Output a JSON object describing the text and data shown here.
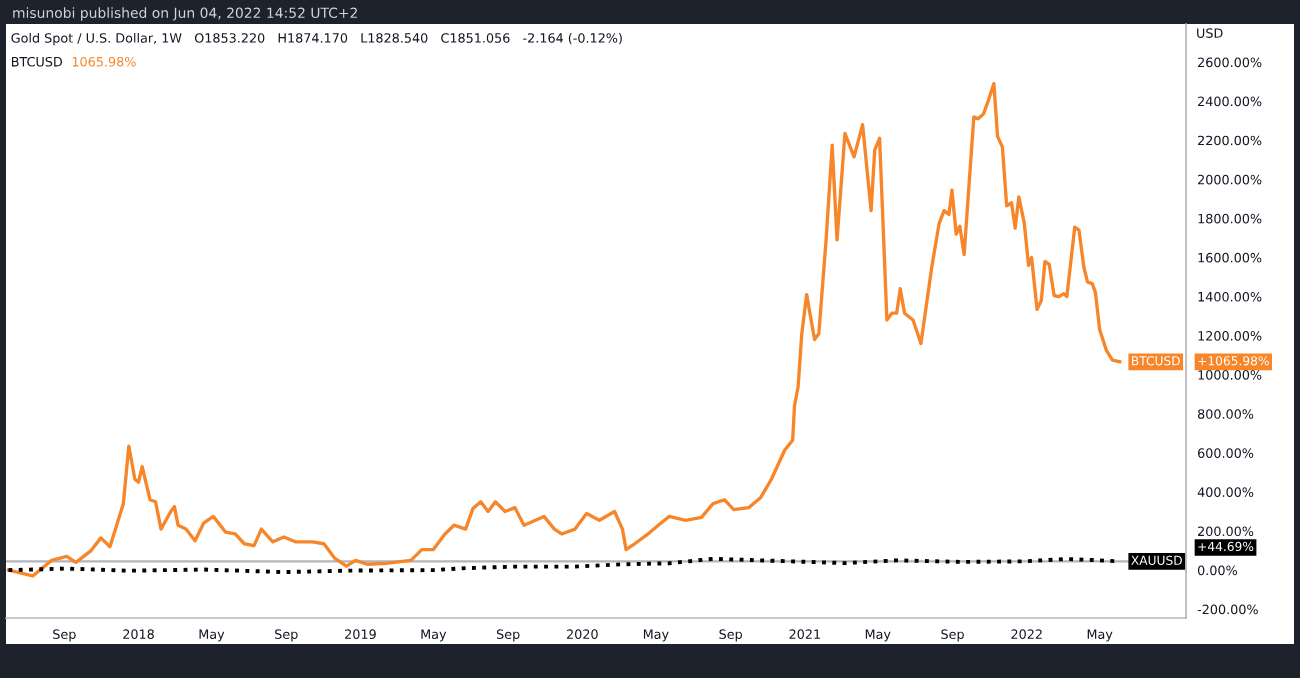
{
  "chart_data": {
    "type": "line",
    "title": "misunobi published on Jun 04, 2022 14:52 UTC+2",
    "subtitle": "Gold Spot / U.S. Dollar, 1W   O1853.220   H1874.170   L1828.540   C1851.056   -2.164 (-0.12%)",
    "ylabel": "USD",
    "legend_title": "BTCUSD",
    "annotations": [
      "1065.98%",
      "+1065.98%",
      "+44.69%"
    ],
    "ylim": [
      -245,
      2795
    ],
    "yticks": [
      {
        "value": -200,
        "label": "-200.00%"
      },
      {
        "value": 0,
        "label": "0.00%"
      },
      {
        "value": 200,
        "label": "200.00%"
      },
      {
        "value": 400,
        "label": "400.00%"
      },
      {
        "value": 600,
        "label": "600.00%"
      },
      {
        "value": 800,
        "label": "800.00%"
      },
      {
        "value": 1000,
        "label": "1000.00%"
      },
      {
        "value": 1200,
        "label": "1200.00%"
      },
      {
        "value": 1400,
        "label": "1400.00%"
      },
      {
        "value": 1600,
        "label": "1600.00%"
      },
      {
        "value": 1800,
        "label": "1800.00%"
      },
      {
        "value": 2000,
        "label": "2000.00%"
      },
      {
        "value": 2200,
        "label": "2200.00%"
      },
      {
        "value": 2400,
        "label": "2400.00%"
      },
      {
        "value": 2600,
        "label": "2600.00%"
      }
    ],
    "xlim": [
      "2017-05-28",
      "2022-09-20"
    ],
    "xticks": [
      {
        "value": "2017-09-01",
        "label": "Sep"
      },
      {
        "value": "2018-01-01",
        "label": "2018"
      },
      {
        "value": "2018-05-01",
        "label": "May"
      },
      {
        "value": "2018-09-01",
        "label": "Sep"
      },
      {
        "value": "2019-01-01",
        "label": "2019"
      },
      {
        "value": "2019-05-01",
        "label": "May"
      },
      {
        "value": "2019-09-01",
        "label": "Sep"
      },
      {
        "value": "2020-01-01",
        "label": "2020"
      },
      {
        "value": "2020-05-01",
        "label": "May"
      },
      {
        "value": "2020-09-01",
        "label": "Sep"
      },
      {
        "value": "2021-01-01",
        "label": "2021"
      },
      {
        "value": "2021-05-01",
        "label": "May"
      },
      {
        "value": "2021-09-01",
        "label": "Sep"
      },
      {
        "value": "2022-01-01",
        "label": "2022"
      },
      {
        "value": "2022-05-01",
        "label": "May"
      }
    ],
    "ref_lines": [
      {
        "axis": "y",
        "value": 44.69,
        "color": "#b2b5be"
      }
    ],
    "grid": false,
    "series": [
      {
        "name": "BTCUSD",
        "color": "#f7862a",
        "line_style": "solid",
        "x": [
          "2017-06-01",
          "2017-07-11",
          "2017-08-11",
          "2017-09-05",
          "2017-09-20",
          "2017-10-15",
          "2017-10-31",
          "2017-11-15",
          "2017-12-07",
          "2017-12-16",
          "2017-12-26",
          "2018-01-01",
          "2018-01-07",
          "2018-01-20",
          "2018-01-29",
          "2018-02-07",
          "2018-02-15",
          "2018-02-23",
          "2018-03-01",
          "2018-03-07",
          "2018-03-20",
          "2018-04-04",
          "2018-04-18",
          "2018-05-04",
          "2018-05-24",
          "2018-06-09",
          "2018-06-24",
          "2018-07-10",
          "2018-07-22",
          "2018-08-10",
          "2018-08-28",
          "2018-09-16",
          "2018-10-14",
          "2018-11-02",
          "2018-11-20",
          "2018-12-09",
          "2018-12-24",
          "2019-01-12",
          "2019-02-12",
          "2019-03-25",
          "2019-04-12",
          "2019-05-01",
          "2019-05-20",
          "2019-06-04",
          "2019-06-23",
          "2019-07-05",
          "2019-07-18",
          "2019-07-30",
          "2019-08-11",
          "2019-08-27",
          "2019-09-12",
          "2019-09-27",
          "2019-10-16",
          "2019-10-30",
          "2019-11-16",
          "2019-11-28",
          "2019-12-20",
          "2020-01-08",
          "2020-01-29",
          "2020-02-23",
          "2020-03-07",
          "2020-03-13",
          "2020-03-25",
          "2020-04-16",
          "2020-05-05",
          "2020-05-23",
          "2020-06-19",
          "2020-07-15",
          "2020-08-03",
          "2020-08-22",
          "2020-09-06",
          "2020-10-01",
          "2020-10-20",
          "2020-11-07",
          "2020-11-29",
          "2020-12-12",
          "2020-12-15",
          "2020-12-21",
          "2020-12-27",
          "2021-01-04",
          "2021-01-17",
          "2021-01-24",
          "2021-02-05",
          "2021-02-15",
          "2021-02-23",
          "2021-03-08",
          "2021-03-23",
          "2021-04-06",
          "2021-04-20",
          "2021-04-26",
          "2021-05-04",
          "2021-05-16",
          "2021-05-24",
          "2021-06-01",
          "2021-06-07",
          "2021-06-14",
          "2021-06-28",
          "2021-07-11",
          "2021-07-29",
          "2021-08-10",
          "2021-08-18",
          "2021-08-26",
          "2021-08-31",
          "2021-09-07",
          "2021-09-13",
          "2021-09-20",
          "2021-10-06",
          "2021-10-13",
          "2021-10-22",
          "2021-10-30",
          "2021-11-08",
          "2021-11-14",
          "2021-11-22",
          "2021-11-29",
          "2021-12-07",
          "2021-12-13",
          "2021-12-19",
          "2021-12-28",
          "2022-01-04",
          "2022-01-09",
          "2022-01-18",
          "2022-01-25",
          "2022-01-31",
          "2022-02-07",
          "2022-02-15",
          "2022-02-23",
          "2022-03-03",
          "2022-03-08",
          "2022-03-21",
          "2022-03-28",
          "2022-04-05",
          "2022-04-11",
          "2022-04-19",
          "2022-04-24",
          "2022-05-01",
          "2022-05-12",
          "2022-05-22",
          "2022-06-03"
        ],
        "values": [
          0,
          -30,
          50,
          70,
          40,
          100,
          165,
          120,
          340,
          635,
          465,
          450,
          530,
          360,
          350,
          210,
          255,
          300,
          325,
          230,
          210,
          150,
          240,
          275,
          195,
          185,
          135,
          125,
          210,
          145,
          170,
          145,
          145,
          135,
          60,
          20,
          50,
          30,
          35,
          50,
          105,
          105,
          185,
          230,
          210,
          315,
          350,
          300,
          350,
          300,
          320,
          230,
          255,
          275,
          210,
          185,
          210,
          290,
          255,
          300,
          210,
          105,
          130,
          180,
          230,
          275,
          255,
          270,
          340,
          360,
          310,
          320,
          370,
          465,
          615,
          665,
          840,
          940,
          1210,
          1410,
          1180,
          1210,
          1690,
          2175,
          1690,
          2235,
          2115,
          2280,
          1840,
          2150,
          2210,
          1280,
          1315,
          1315,
          1440,
          1315,
          1280,
          1160,
          1555,
          1775,
          1840,
          1820,
          1945,
          1720,
          1760,
          1615,
          2320,
          2310,
          2335,
          2405,
          2490,
          2220,
          2165,
          1865,
          1880,
          1750,
          1910,
          1775,
          1560,
          1600,
          1335,
          1380,
          1580,
          1565,
          1405,
          1400,
          1415,
          1400,
          1755,
          1740,
          1550,
          1475,
          1465,
          1420,
          1230,
          1125,
          1075,
          1065.98
        ]
      },
      {
        "name": "XAUUSD",
        "color": "#000000",
        "line_style": "dotted",
        "x": [
          "2017-06-01",
          "2017-09-05",
          "2017-12-16",
          "2018-04-18",
          "2018-08-28",
          "2018-12-24",
          "2019-05-01",
          "2019-06-23",
          "2019-09-12",
          "2019-12-20",
          "2020-03-07",
          "2020-05-23",
          "2020-08-03",
          "2020-10-20",
          "2021-03-08",
          "2021-06-01",
          "2021-09-20",
          "2021-12-28",
          "2022-03-08",
          "2022-04-19",
          "2022-06-03"
        ],
        "values": [
          0,
          8,
          -3,
          3,
          -10,
          -2,
          0,
          10,
          18,
          18,
          30,
          35,
          58,
          50,
          36,
          50,
          42,
          45,
          57,
          52,
          44.69
        ]
      }
    ]
  }
}
